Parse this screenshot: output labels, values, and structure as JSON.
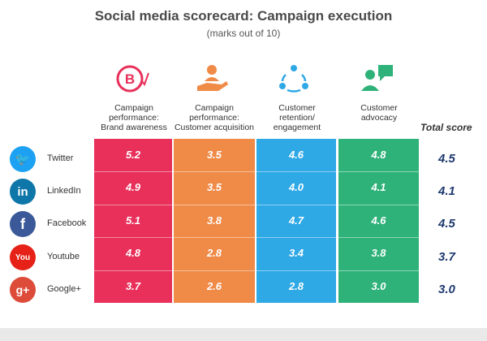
{
  "header": {
    "title": "Social media scorecard: Campaign execution",
    "subtitle": "(marks out of 10)"
  },
  "columns": [
    {
      "label_lines": [
        "Campaign",
        "performance:",
        "Brand awareness"
      ],
      "icon": "brand-awareness-logo-icon",
      "color": "#e8305a"
    },
    {
      "label_lines": [
        "Campaign",
        "performance:",
        "Customer acquisition"
      ],
      "icon": "hand-offering-person-icon",
      "color": "#f08a47"
    },
    {
      "label_lines": [
        "Customer",
        "retention/",
        "engagement"
      ],
      "icon": "people-cycle-icon",
      "color": "#2fa8e6"
    },
    {
      "label_lines": [
        "Customer",
        "advocacy"
      ],
      "icon": "person-speech-bubble-icon",
      "color": "#2fb27a"
    }
  ],
  "total_label": "Total score",
  "chart_data": {
    "type": "table",
    "title": "Social media scorecard: Campaign execution",
    "subtitle": "(marks out of 10)",
    "categories": [
      "Twitter",
      "LinkedIn",
      "Facebook",
      "Youtube",
      "Google+"
    ],
    "series": [
      {
        "name": "Campaign performance: Brand awareness",
        "values": [
          5.2,
          4.9,
          5.1,
          4.8,
          3.7
        ]
      },
      {
        "name": "Campaign performance: Customer acquisition",
        "values": [
          3.5,
          3.5,
          3.8,
          2.8,
          2.6
        ]
      },
      {
        "name": "Customer retention/ engagement",
        "values": [
          4.6,
          4.0,
          4.7,
          3.4,
          2.8
        ]
      },
      {
        "name": "Customer advocacy",
        "values": [
          4.8,
          4.1,
          4.6,
          3.8,
          3.0
        ]
      },
      {
        "name": "Total score",
        "values": [
          4.5,
          4.1,
          4.5,
          3.7,
          3.0
        ]
      }
    ]
  },
  "rows": [
    {
      "name": "Twitter",
      "icon": "twitter-bird-icon",
      "glyph": "🐦",
      "color": "#1da1f2",
      "scores": [
        "5.2",
        "3.5",
        "4.6",
        "4.8"
      ],
      "total": "4.5"
    },
    {
      "name": "LinkedIn",
      "icon": "linkedin-icon",
      "glyph": "in",
      "color": "#0e76a8",
      "scores": [
        "4.9",
        "3.5",
        "4.0",
        "4.1"
      ],
      "total": "4.1"
    },
    {
      "name": "Facebook",
      "icon": "facebook-icon",
      "glyph": "f",
      "color": "#3b5998",
      "scores": [
        "5.1",
        "3.8",
        "4.7",
        "4.6"
      ],
      "total": "4.5"
    },
    {
      "name": "Youtube",
      "icon": "youtube-icon",
      "glyph": "You",
      "color": "#e62117",
      "scores": [
        "4.8",
        "2.8",
        "3.4",
        "3.8"
      ],
      "total": "3.7"
    },
    {
      "name": "Google+",
      "icon": "google-plus-icon",
      "glyph": "g+",
      "color": "#dd4b39",
      "scores": [
        "3.7",
        "2.6",
        "2.8",
        "3.0"
      ],
      "total": "3.0"
    }
  ]
}
